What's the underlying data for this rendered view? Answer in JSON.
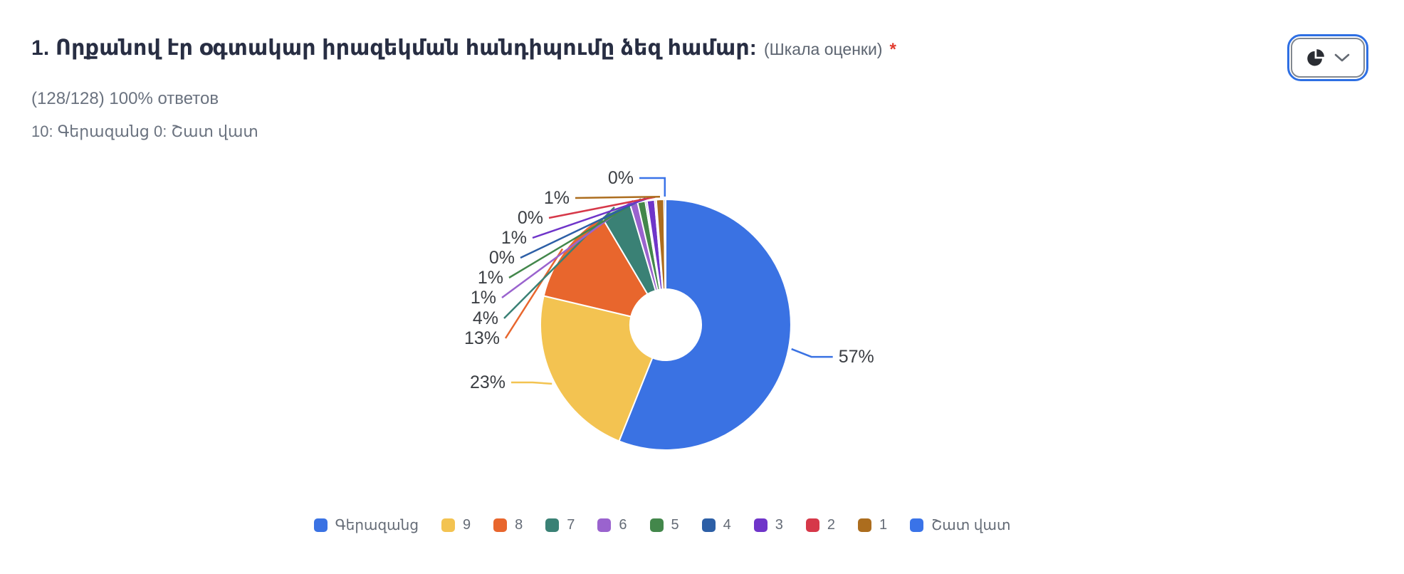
{
  "header": {
    "title": "1. Որքանով էր օգտակար իրազեկման հանդիպումը ձեզ համար:",
    "subtitle": "(Шкала оценки)",
    "required_marker": "*",
    "responses_summary": "(128/128) 100% ответов",
    "scale_hint": "10: Գերազանց 0: Շատ վատ"
  },
  "toolbar": {
    "chart_type_button": {
      "icon": "pie-chart",
      "chevron": "chevron-down",
      "selected_chart_type": "pie"
    }
  },
  "chart_data": {
    "type": "pie",
    "donut": true,
    "title": "",
    "unit": "%",
    "legend_position": "bottom",
    "start_angle_deg": 0,
    "direction": "clockwise",
    "slices": [
      {
        "label": "Գերազանց",
        "percent": 57,
        "color": "#3A72E3"
      },
      {
        "label": "9",
        "percent": 23,
        "color": "#F3C351"
      },
      {
        "label": "8",
        "percent": 13,
        "color": "#E8662D"
      },
      {
        "label": "7",
        "percent": 4,
        "color": "#3A8175"
      },
      {
        "label": "6",
        "percent": 1,
        "color": "#9A63CE"
      },
      {
        "label": "5",
        "percent": 1,
        "color": "#43874B"
      },
      {
        "label": "4",
        "percent": 0,
        "color": "#2D5FA6"
      },
      {
        "label": "3",
        "percent": 1,
        "color": "#6F35C9"
      },
      {
        "label": "2",
        "percent": 0,
        "color": "#D63849"
      },
      {
        "label": "1",
        "percent": 1,
        "color": "#AC6D1E"
      },
      {
        "label": "Շատ վատ",
        "percent": 0,
        "color": "#3A73E8"
      }
    ]
  },
  "colors": {
    "background": "#FFFFFF",
    "title_text": "#282E43",
    "muted_text": "#6A727F",
    "percent_label_text": "#3B3E43",
    "legend_text": "#646B76",
    "required_marker": "#E23B2E",
    "focus_ring": "#2E6FE3",
    "button_border": "#828890",
    "button_icon": "#2A2D33",
    "chevron": "#646A73"
  }
}
